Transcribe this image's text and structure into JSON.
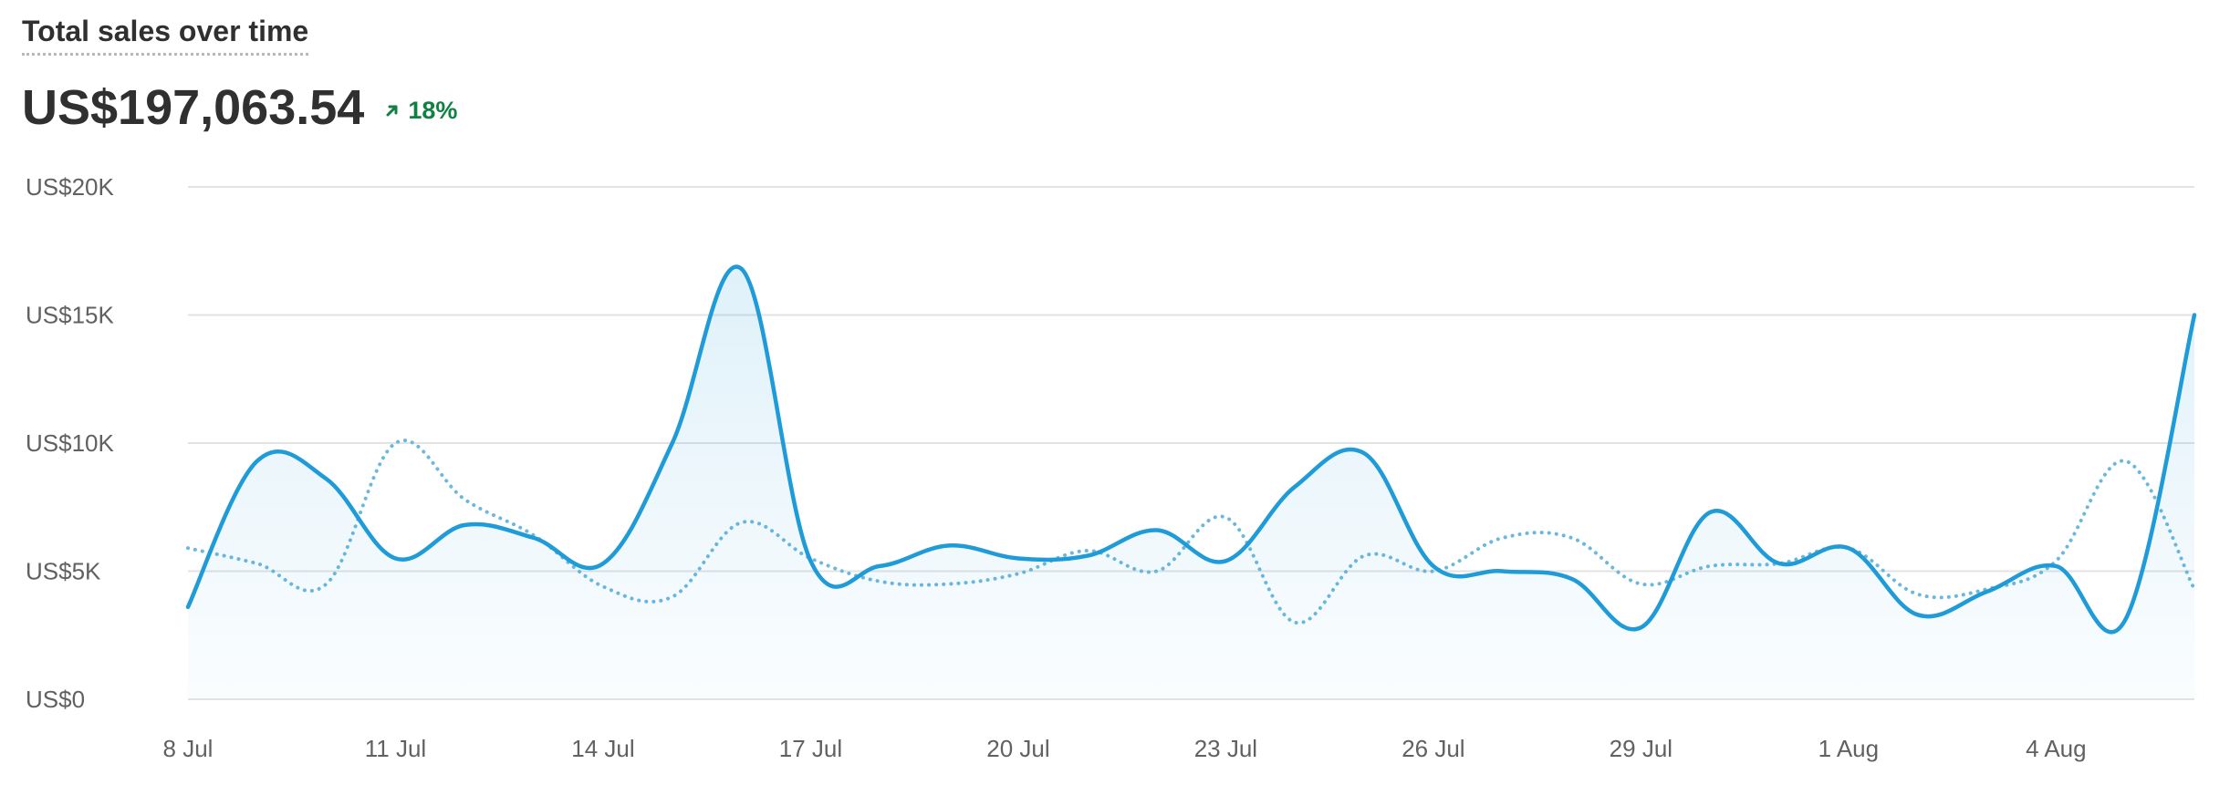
{
  "header": {
    "title": "Total sales over time",
    "total": "US$197,063.54",
    "change": "18%",
    "change_direction": "up",
    "change_color": "#108043",
    "change_icon": "arrow-up-right-icon"
  },
  "chart_data": {
    "type": "line",
    "xlabel": "",
    "ylabel": "",
    "y_ticks": [
      "US$0",
      "US$5K",
      "US$10K",
      "US$15K",
      "US$20K"
    ],
    "y_tick_values": [
      0,
      5000,
      10000,
      15000,
      20000
    ],
    "ylim": [
      0,
      20000
    ],
    "x_ticks": [
      "8 Jul",
      "11 Jul",
      "14 Jul",
      "17 Jul",
      "20 Jul",
      "23 Jul",
      "26 Jul",
      "29 Jul",
      "1 Aug",
      "4 Aug"
    ],
    "x_tick_indices": [
      0,
      3,
      6,
      9,
      12,
      15,
      18,
      21,
      24,
      27
    ],
    "x": [
      "8 Jul",
      "9 Jul",
      "10 Jul",
      "11 Jul",
      "12 Jul",
      "13 Jul",
      "14 Jul",
      "15 Jul",
      "16 Jul",
      "17 Jul",
      "18 Jul",
      "19 Jul",
      "20 Jul",
      "21 Jul",
      "22 Jul",
      "23 Jul",
      "24 Jul",
      "25 Jul",
      "26 Jul",
      "27 Jul",
      "28 Jul",
      "29 Jul",
      "30 Jul",
      "31 Jul",
      "1 Aug",
      "2 Aug",
      "3 Aug",
      "4 Aug",
      "5 Aug",
      "6 Aug"
    ],
    "grid": true,
    "legend": "none",
    "series": [
      {
        "style": "solid",
        "color": "#1f9bd8",
        "fill": true,
        "values": [
          3600,
          9300,
          8600,
          5500,
          6800,
          6300,
          5300,
          10000,
          16800,
          5400,
          5200,
          6000,
          5500,
          5600,
          6600,
          5400,
          8300,
          9600,
          5200,
          5000,
          4700,
          2800,
          7300,
          5300,
          5900,
          3300,
          4200,
          5200,
          3100,
          15000
        ]
      },
      {
        "style": "dotted",
        "color": "#6cb8dd",
        "fill": false,
        "values": [
          5900,
          5300,
          4500,
          10000,
          7800,
          6400,
          4400,
          4000,
          6900,
          5500,
          4600,
          4500,
          4900,
          5800,
          5000,
          7100,
          3000,
          5600,
          5000,
          6300,
          6300,
          4500,
          5200,
          5300,
          5900,
          4100,
          4300,
          5400,
          9300,
          4300
        ]
      }
    ]
  }
}
